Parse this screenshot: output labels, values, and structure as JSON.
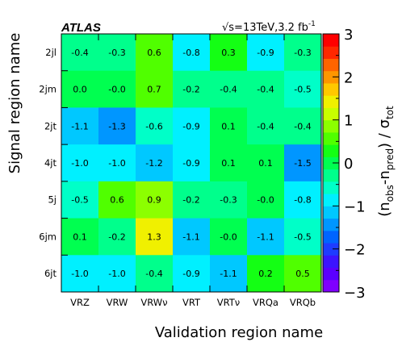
{
  "chart_data": {
    "type": "heatmap",
    "experiment_label": "ATLAS",
    "energy_label": "√s=13TeV,3.2 fb",
    "energy_label_sup": "-1",
    "xlabel": "Validation region name",
    "ylabel": "Signal region name",
    "colorbar_label": "(n",
    "colorbar_label_sub1": "obs",
    "colorbar_label_mid": "-n",
    "colorbar_label_sub2": "pred",
    "colorbar_label_end": ") / σ",
    "colorbar_label_sub3": "tot",
    "x_categories": [
      "VRZ",
      "VRW",
      "VRWν",
      "VRT",
      "VRTν",
      "VRQa",
      "VRQb"
    ],
    "y_categories": [
      "2jl",
      "2jm",
      "2jt",
      "4jt",
      "5j",
      "6jm",
      "6jt"
    ],
    "zlim": [
      -3,
      3
    ],
    "colorbar_ticks": [
      "3",
      "2",
      "1",
      "0",
      "−1",
      "−2",
      "−3"
    ],
    "values": [
      [
        -0.4,
        -0.3,
        0.6,
        -0.8,
        0.3,
        -0.9,
        -0.3
      ],
      [
        0.0,
        -0.0,
        0.7,
        -0.2,
        -0.4,
        -0.4,
        -0.5
      ],
      [
        -1.1,
        -1.3,
        -0.6,
        -0.9,
        0.1,
        -0.4,
        -0.4
      ],
      [
        -1.0,
        -1.0,
        -1.2,
        -0.9,
        0.1,
        0.1,
        -1.5
      ],
      [
        -0.5,
        0.6,
        0.9,
        -0.2,
        -0.3,
        -0.0,
        -0.8
      ],
      [
        0.1,
        -0.2,
        1.3,
        -1.1,
        -0.0,
        -1.1,
        -0.5
      ],
      [
        -1.0,
        -1.0,
        -0.4,
        -0.9,
        -1.1,
        0.2,
        0.5
      ]
    ],
    "value_labels": [
      [
        "-0.4",
        "-0.3",
        "0.6",
        "-0.8",
        "0.3",
        "-0.9",
        "-0.3"
      ],
      [
        "0.0",
        "-0.0",
        "0.7",
        "-0.2",
        "-0.4",
        "-0.4",
        "-0.5"
      ],
      [
        "-1.1",
        "-1.3",
        "-0.6",
        "-0.9",
        "0.1",
        "-0.4",
        "-0.4"
      ],
      [
        "-1.0",
        "-1.0",
        "-1.2",
        "-0.9",
        "0.1",
        "0.1",
        "-1.5"
      ],
      [
        "-0.5",
        "0.6",
        "0.9",
        "-0.2",
        "-0.3",
        "-0.0",
        "-0.8"
      ],
      [
        "0.1",
        "-0.2",
        "1.3",
        "-1.1",
        "-0.0",
        "-1.1",
        "-0.5"
      ],
      [
        "-1.0",
        "-1.0",
        "-0.4",
        "-0.9",
        "-1.1",
        "0.2",
        "0.5"
      ]
    ],
    "colors": {
      "palette": [
        "#7f00ff",
        "#5a00ff",
        "#3c14ff",
        "#1e3cff",
        "#0064ff",
        "#0096ff",
        "#00c8ff",
        "#00f0ff",
        "#00ffc8",
        "#00ff8c",
        "#00ff50",
        "#14ff14",
        "#50ff00",
        "#8cff00",
        "#c8ff00",
        "#f0f000",
        "#ffc800",
        "#ff9600",
        "#ff6400",
        "#ff2800",
        "#ff0000"
      ]
    }
  }
}
